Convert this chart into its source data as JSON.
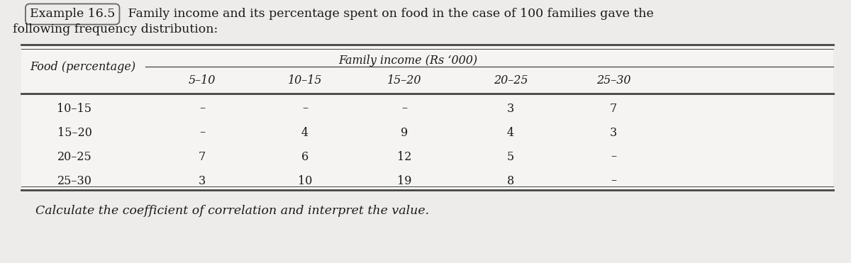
{
  "title_example": "Example 16.5",
  "title_line1": " Family income and its percentage spent on food in the case of 100 families gave the",
  "title_line2": "following frequency distribution:",
  "header_left": "Food (percentage)",
  "header_right": "Family income (Rs ‘000)",
  "col_headers": [
    "5–10",
    "10–15",
    "15–20",
    "20–25",
    "25–30"
  ],
  "row_headers": [
    "10–15",
    "15–20",
    "20–25",
    "25–30"
  ],
  "table_data": [
    [
      "–",
      "–",
      "–",
      "3",
      "7"
    ],
    [
      "–",
      "4",
      "9",
      "4",
      "3"
    ],
    [
      "7",
      "6",
      "12",
      "5",
      "–"
    ],
    [
      "3",
      "10",
      "19",
      "8",
      "–"
    ]
  ],
  "footer_text": "Calculate the coefficient of correlation and interpret the value.",
  "bg_color": "#edecea",
  "table_bg": "#f5f4f2",
  "text_color": "#1a1a1a",
  "title_fontsize": 12.5,
  "header_fontsize": 11.5,
  "cell_fontsize": 11.5,
  "footer_fontsize": 12.5
}
